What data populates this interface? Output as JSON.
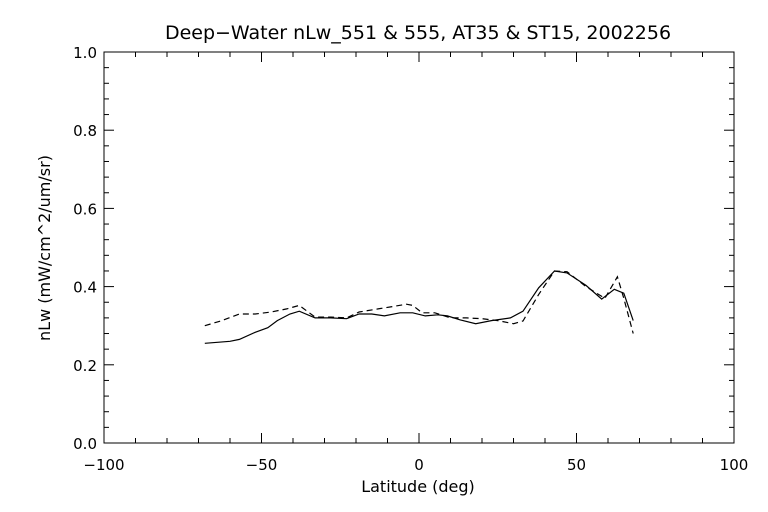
{
  "chart_data": {
    "type": "line",
    "title": "Deep−Water nLw_551 & 555, AT35 & ST15, 2002256",
    "xlabel": "Latitude (deg)",
    "ylabel": "nLw (mW/cm^2/um/sr)",
    "xlim": [
      -100,
      100
    ],
    "ylim": [
      0.0,
      1.0
    ],
    "x_ticks": [
      -100,
      -50,
      0,
      50,
      100
    ],
    "x_tick_labels": [
      "−100",
      "−50",
      "0",
      "50",
      "100"
    ],
    "y_ticks": [
      0.0,
      0.2,
      0.4,
      0.6,
      0.8,
      1.0
    ],
    "y_tick_labels": [
      "0.0",
      "0.2",
      "0.4",
      "0.6",
      "0.8",
      "1.0"
    ],
    "grid": false,
    "series": [
      {
        "style": "solid",
        "color": "#000000",
        "x": [
          -68,
          -60,
          -57,
          -52,
          -48,
          -45,
          -41,
          -38,
          -33,
          -28,
          -23,
          -19,
          -15,
          -11,
          -6,
          -2,
          2,
          6,
          9,
          13,
          18,
          23,
          29,
          33,
          38,
          43,
          47,
          53,
          58,
          62,
          65,
          68
        ],
        "y": [
          0.255,
          0.26,
          0.265,
          0.283,
          0.295,
          0.313,
          0.33,
          0.337,
          0.32,
          0.32,
          0.318,
          0.33,
          0.33,
          0.325,
          0.333,
          0.333,
          0.325,
          0.328,
          0.325,
          0.315,
          0.305,
          0.313,
          0.32,
          0.337,
          0.397,
          0.44,
          0.435,
          0.403,
          0.368,
          0.393,
          0.383,
          0.313
        ]
      },
      {
        "style": "dashed",
        "color": "#000000",
        "x": [
          -68,
          -63,
          -57,
          -52,
          -47,
          -42,
          -38,
          -33,
          -28,
          -23,
          -19,
          -13,
          -9,
          -4,
          -2,
          1,
          5,
          10,
          15,
          20,
          25,
          30,
          33,
          38,
          43,
          47,
          53,
          59,
          63,
          65,
          68
        ],
        "y": [
          0.3,
          0.312,
          0.33,
          0.33,
          0.335,
          0.343,
          0.352,
          0.322,
          0.322,
          0.32,
          0.335,
          0.343,
          0.348,
          0.355,
          0.352,
          0.333,
          0.333,
          0.32,
          0.32,
          0.318,
          0.313,
          0.305,
          0.312,
          0.38,
          0.44,
          0.438,
          0.4,
          0.37,
          0.425,
          0.37,
          0.28
        ]
      }
    ]
  }
}
